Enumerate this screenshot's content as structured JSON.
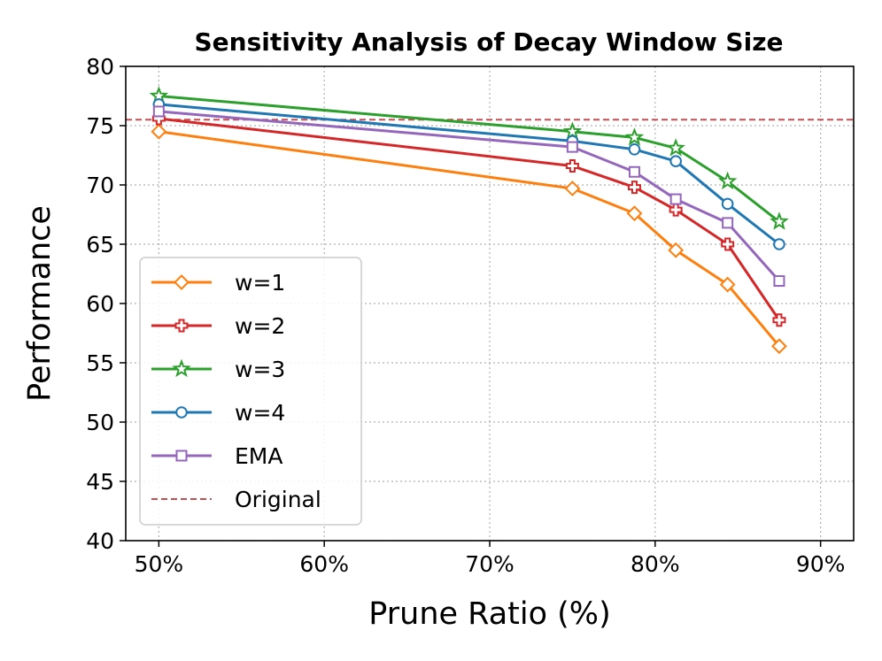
{
  "chart_data": {
    "type": "line",
    "title": "Sensitivity Analysis of Decay Window Size",
    "xlabel": "Prune Ratio (%)",
    "ylabel": "Performance",
    "xlim": [
      48,
      92
    ],
    "ylim": [
      40,
      80
    ],
    "x_ticks": [
      50,
      60,
      70,
      80,
      90
    ],
    "x_tick_labels": [
      "50%",
      "60%",
      "70%",
      "80%",
      "90%"
    ],
    "y_ticks": [
      40,
      45,
      50,
      55,
      60,
      65,
      70,
      75,
      80
    ],
    "y_tick_labels": [
      "40",
      "45",
      "50",
      "55",
      "60",
      "65",
      "70",
      "75",
      "80"
    ],
    "grid": true,
    "legend_position": "lower-left",
    "x": [
      50,
      75,
      78.75,
      81.25,
      84.38,
      87.5
    ],
    "series": [
      {
        "name": "w=1",
        "color": "#ff7f0e",
        "marker": "diamond",
        "values": [
          74.5,
          69.7,
          67.6,
          64.5,
          61.6,
          56.4
        ]
      },
      {
        "name": "w=2",
        "color": "#d62728",
        "marker": "plus",
        "values": [
          75.6,
          71.6,
          69.8,
          67.9,
          65.0,
          58.6
        ]
      },
      {
        "name": "w=3",
        "color": "#2ca02c",
        "marker": "star",
        "values": [
          77.5,
          74.5,
          74.0,
          73.1,
          70.3,
          66.9
        ]
      },
      {
        "name": "w=4",
        "color": "#1f77b4",
        "marker": "circle",
        "values": [
          76.8,
          73.7,
          73.0,
          72.0,
          68.4,
          65.0
        ]
      },
      {
        "name": "EMA",
        "color": "#9467bd",
        "marker": "square",
        "values": [
          76.2,
          73.2,
          71.1,
          68.8,
          66.8,
          61.9
        ]
      }
    ],
    "reference_line": {
      "name": "Original",
      "value": 75.5,
      "color": "#c44e52",
      "style": "dashed"
    }
  }
}
